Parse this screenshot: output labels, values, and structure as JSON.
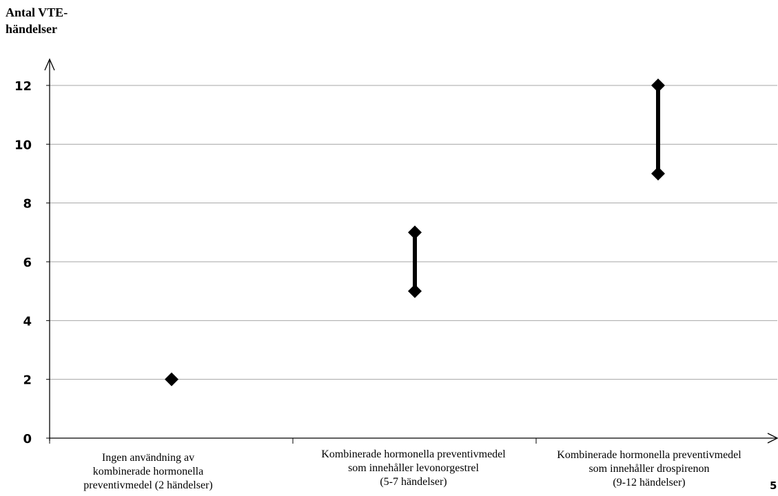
{
  "chart_data": {
    "type": "scatter",
    "ylabel": "Antal VTE-\nhändelser",
    "ylim": [
      0,
      12
    ],
    "yticks": [
      0,
      2,
      4,
      6,
      8,
      10,
      12
    ],
    "grid": true,
    "categories": [
      "Ingen användning av\nkombinerade hormonella\npreventivmedel (2 händelser)",
      "Kombinerade hormonella preventivmedel\nsom innehåller levonorgestrel\n(5-7 händelser)",
      "Kombinerade hormonella preventivmedel\nsom innehåller drospirenon\n(9-12 händelser)"
    ],
    "ranges": [
      {
        "low": 2,
        "high": 2
      },
      {
        "low": 5,
        "high": 7
      },
      {
        "low": 9,
        "high": 12
      }
    ]
  },
  "page_number": "5"
}
